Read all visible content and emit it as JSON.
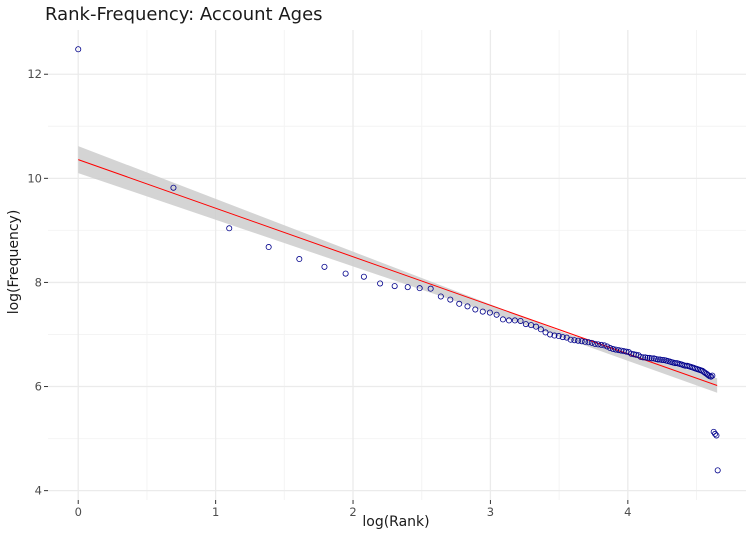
{
  "chart_data": {
    "type": "scatter",
    "title": "Rank-Frequency: Account Ages",
    "xlabel": "log(Rank)",
    "ylabel": "log(Frequency)",
    "xlim": [
      -0.22,
      4.86
    ],
    "ylim": [
      3.82,
      12.85
    ],
    "xticks": [
      0,
      1,
      2,
      3,
      4
    ],
    "yticks": [
      4,
      6,
      8,
      10,
      12
    ],
    "tick_labels": {
      "x": [
        "0",
        "1",
        "2",
        "3",
        "4"
      ],
      "y": [
        "4",
        "6",
        "8",
        "10",
        "12"
      ]
    },
    "grid": true,
    "legend": "none",
    "colors": {
      "points": "#00008b",
      "fit_line": "#ff0000",
      "band": "#cccccc",
      "grid_major": "#ebebeb",
      "grid_minor": "#f4f4f4"
    },
    "fit_line": {
      "x": [
        0,
        4.65
      ],
      "y": [
        10.36,
        6.02
      ]
    },
    "confidence_band": {
      "x": [
        0,
        3.55,
        4.65
      ],
      "lower": [
        10.1,
        6.92,
        5.88
      ],
      "upper": [
        10.62,
        7.02,
        6.16
      ]
    },
    "series": [
      {
        "x": [
          0,
          0.693,
          1.099,
          1.386,
          1.609,
          1.792,
          1.946,
          2.079,
          2.197,
          2.303,
          2.398,
          2.485,
          2.565,
          2.639,
          2.708,
          2.773,
          2.833,
          2.89,
          2.944,
          2.996,
          3.045,
          3.091,
          3.135,
          3.178,
          3.219,
          3.258,
          3.296,
          3.332,
          3.367,
          3.401,
          3.434,
          3.466,
          3.497,
          3.526,
          3.555,
          3.584,
          3.611,
          3.638,
          3.664,
          3.689,
          3.714,
          3.738,
          3.761,
          3.784,
          3.807,
          3.829,
          3.85,
          3.871,
          3.892,
          3.912,
          3.932,
          3.951,
          3.97,
          3.989,
          4.007,
          4.025,
          4.043,
          4.06,
          4.078,
          4.094,
          4.111,
          4.127,
          4.143,
          4.159,
          4.174,
          4.19,
          4.205,
          4.22,
          4.234,
          4.248,
          4.263,
          4.277,
          4.29,
          4.304,
          4.317,
          4.331,
          4.344,
          4.357,
          4.369,
          4.382,
          4.394,
          4.406,
          4.419,
          4.431,
          4.443,
          4.454,
          4.466,
          4.477,
          4.489,
          4.5,
          4.511,
          4.522,
          4.533,
          4.543,
          4.554,
          4.564,
          4.575,
          4.585,
          4.595,
          4.605,
          4.615,
          4.625,
          4.635,
          4.645,
          4.654
        ],
        "y": [
          12.48,
          9.82,
          9.04,
          8.68,
          8.45,
          8.3,
          8.17,
          8.11,
          7.98,
          7.93,
          7.91,
          7.89,
          7.88,
          7.73,
          7.67,
          7.59,
          7.54,
          7.48,
          7.44,
          7.42,
          7.38,
          7.29,
          7.27,
          7.27,
          7.26,
          7.2,
          7.18,
          7.15,
          7.1,
          7.04,
          7.0,
          6.98,
          6.97,
          6.95,
          6.94,
          6.9,
          6.89,
          6.88,
          6.87,
          6.86,
          6.85,
          6.84,
          6.82,
          6.81,
          6.8,
          6.79,
          6.77,
          6.74,
          6.72,
          6.71,
          6.7,
          6.69,
          6.68,
          6.67,
          6.66,
          6.63,
          6.62,
          6.61,
          6.6,
          6.57,
          6.56,
          6.56,
          6.55,
          6.55,
          6.54,
          6.54,
          6.53,
          6.52,
          6.52,
          6.51,
          6.51,
          6.5,
          6.49,
          6.48,
          6.47,
          6.46,
          6.45,
          6.45,
          6.44,
          6.43,
          6.42,
          6.41,
          6.4,
          6.4,
          6.39,
          6.38,
          6.37,
          6.36,
          6.35,
          6.34,
          6.33,
          6.32,
          6.31,
          6.3,
          6.28,
          6.26,
          6.24,
          6.22,
          6.2,
          6.19,
          6.21,
          5.13,
          5.09,
          5.06,
          4.39
        ]
      }
    ]
  }
}
